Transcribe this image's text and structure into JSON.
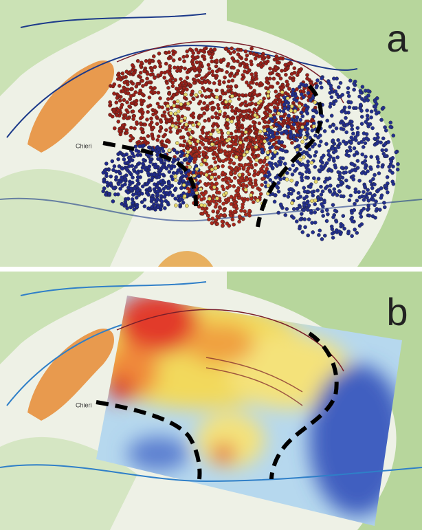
{
  "panels": [
    {
      "label": "a",
      "place": "Chieri"
    },
    {
      "label": "b",
      "place": "Chieri"
    }
  ]
}
